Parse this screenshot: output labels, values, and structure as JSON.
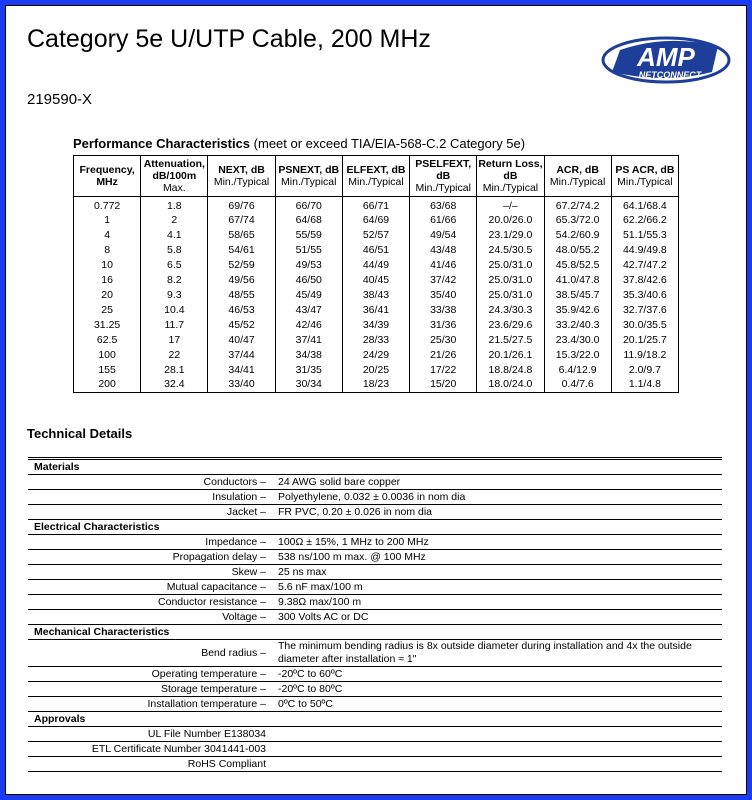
{
  "header": {
    "title": "Category 5e U/UTP Cable, 200 MHz",
    "part_number": "219590-X",
    "logo": {
      "brand": "AMP",
      "sub": "NETCONNECT"
    }
  },
  "performance": {
    "heading": "Performance Characteristics",
    "note": "(meet or exceed TIA/EIA-568-C.2 Category 5e)",
    "columns": [
      {
        "name": "Frequency, MHz"
      },
      {
        "name": "Attenuation, dB/100m",
        "sub": "Max."
      },
      {
        "name": "NEXT, dB",
        "sub": "Min./Typical"
      },
      {
        "name": "PSNEXT, dB",
        "sub": "Min./Typical"
      },
      {
        "name": "ELFEXT, dB",
        "sub": "Min./Typical"
      },
      {
        "name": "PSELFEXT, dB",
        "sub": "Min./Typical"
      },
      {
        "name": "Return Loss, dB",
        "sub": "Min./Typical"
      },
      {
        "name": "ACR, dB",
        "sub": "Min./Typical"
      },
      {
        "name": "PS ACR, dB",
        "sub": "Min./Typical"
      }
    ],
    "rows": [
      [
        "0.772",
        "1.8",
        "69/76",
        "66/70",
        "66/71",
        "63/68",
        "–/–",
        "67.2/74.2",
        "64.1/68.4"
      ],
      [
        "1",
        "2",
        "67/74",
        "64/68",
        "64/69",
        "61/66",
        "20.0/26.0",
        "65.3/72.0",
        "62.2/66.2"
      ],
      [
        "4",
        "4.1",
        "58/65",
        "55/59",
        "52/57",
        "49/54",
        "23.1/29.0",
        "54.2/60.9",
        "51.1/55.3"
      ],
      [
        "8",
        "5.8",
        "54/61",
        "51/55",
        "46/51",
        "43/48",
        "24.5/30.5",
        "48.0/55.2",
        "44.9/49.8"
      ],
      [
        "10",
        "6.5",
        "52/59",
        "49/53",
        "44/49",
        "41/46",
        "25.0/31.0",
        "45.8/52.5",
        "42.7/47.2"
      ],
      [
        "16",
        "8.2",
        "49/56",
        "46/50",
        "40/45",
        "37/42",
        "25.0/31.0",
        "41.0/47.8",
        "37.8/42.6"
      ],
      [
        "20",
        "9.3",
        "48/55",
        "45/49",
        "38/43",
        "35/40",
        "25.0/31.0",
        "38.5/45.7",
        "35.3/40.6"
      ],
      [
        "25",
        "10.4",
        "46/53",
        "43/47",
        "36/41",
        "33/38",
        "24.3/30.3",
        "35.9/42.6",
        "32.7/37.6"
      ],
      [
        "31.25",
        "11.7",
        "45/52",
        "42/46",
        "34/39",
        "31/36",
        "23.6/29.6",
        "33.2/40.3",
        "30.0/35.5"
      ],
      [
        "62.5",
        "17",
        "40/47",
        "37/41",
        "28/33",
        "25/30",
        "21.5/27.5",
        "23.4/30.0",
        "20.1/25.7"
      ],
      [
        "100",
        "22",
        "37/44",
        "34/38",
        "24/29",
        "21/26",
        "20.1/26.1",
        "15.3/22.0",
        "11.9/18.2"
      ],
      [
        "155",
        "28.1",
        "34/41",
        "31/35",
        "20/25",
        "17/22",
        "18.8/24.8",
        "6.4/12.9",
        "2.0/9.7"
      ],
      [
        "200",
        "32.4",
        "33/40",
        "30/34",
        "18/23",
        "15/20",
        "18.0/24.0",
        "0.4/7.6",
        "1.1/4.8"
      ]
    ]
  },
  "technical": {
    "heading": "Technical Details",
    "sections": [
      {
        "title": "Materials",
        "rows": [
          {
            "label": "Conductors –",
            "value": "24 AWG solid bare copper"
          },
          {
            "label": "Insulation –",
            "value": "Polyethylene, 0.032 ± 0.0036 in nom dia"
          },
          {
            "label": "Jacket –",
            "value": "FR PVC, 0.20 ± 0.026 in nom dia"
          }
        ]
      },
      {
        "title": "Electrical Characteristics",
        "rows": [
          {
            "label": "Impedance –",
            "value": "100Ω ± 15%, 1 MHz to 200 MHz"
          },
          {
            "label": "Propagation delay –",
            "value": "538 ns/100 m max. @ 100 MHz"
          },
          {
            "label": "Skew –",
            "value": "25 ns max"
          },
          {
            "label": "Mutual capacitance –",
            "value": "5.6 nF max/100 m"
          },
          {
            "label": "Conductor resistance –",
            "value": "9.38Ω max/100 m"
          },
          {
            "label": "Voltage –",
            "value": "300 Volts AC or DC"
          }
        ]
      },
      {
        "title": "Mechanical Characteristics",
        "rows": [
          {
            "label": "Bend radius –",
            "value": "The minimum bending radius is 8x outside diameter during installation and 4x the outside diameter after installation ≈ 1\""
          },
          {
            "label": "Operating temperature –",
            "value": "-20ºC to 60ºC"
          },
          {
            "label": "Storage temperature –",
            "value": "-20ºC to 80ºC"
          },
          {
            "label": "Installation temperature –",
            "value": "0ºC to 50ºC"
          }
        ]
      },
      {
        "title": "Approvals",
        "rows": [
          {
            "label": "UL File Number E138034"
          },
          {
            "label": "ETL Certificate Number 3041441-003"
          },
          {
            "label": "RoHS Compliant"
          }
        ]
      }
    ]
  }
}
